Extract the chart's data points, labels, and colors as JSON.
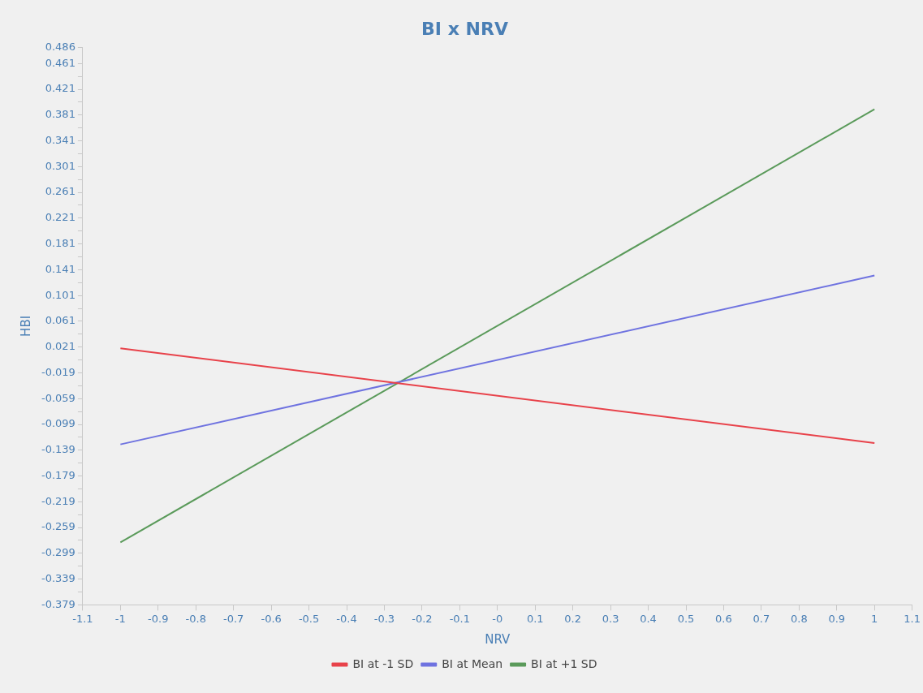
{
  "chart_data": {
    "type": "line",
    "title": "BI x NRV",
    "xlabel": "NRV",
    "ylabel": "HBI",
    "x": [
      -1,
      1
    ],
    "series": [
      {
        "name": "BI at -1 SD",
        "color": "#e8424a",
        "values": [
          0.019,
          -0.128
        ]
      },
      {
        "name": "BI at Mean",
        "color": "#6f73e0",
        "values": [
          -0.13,
          0.132
        ]
      },
      {
        "name": "BI at +1 SD",
        "color": "#5a9a5a",
        "values": [
          -0.282,
          0.39
        ]
      }
    ],
    "xlim": [
      -1.1,
      1.1
    ],
    "xticks": [
      -1.1,
      -1,
      -0.9,
      -0.8,
      -0.7,
      -0.6,
      -0.5,
      -0.4,
      -0.3,
      -0.2,
      -0.1,
      {
        "value": 0,
        "label": "-0"
      },
      0.1,
      0.2,
      0.3,
      0.4,
      0.5,
      0.6,
      0.7,
      0.8,
      0.9,
      1,
      1.1
    ],
    "ylim": [
      -0.379,
      0.486
    ],
    "yticks": [
      -0.379,
      {
        "value": -0.359,
        "label": null
      },
      -0.339,
      {
        "value": -0.319,
        "label": null
      },
      -0.299,
      {
        "value": -0.279,
        "label": null
      },
      -0.259,
      {
        "value": -0.239,
        "label": null
      },
      -0.219,
      {
        "value": -0.199,
        "label": null
      },
      -0.179,
      {
        "value": -0.159,
        "label": null
      },
      -0.139,
      {
        "value": -0.119,
        "label": null
      },
      -0.099,
      {
        "value": -0.079,
        "label": null
      },
      -0.059,
      {
        "value": -0.039,
        "label": null
      },
      -0.019,
      {
        "value": 0.001,
        "label": null
      },
      0.021,
      {
        "value": 0.041,
        "label": null
      },
      0.061,
      {
        "value": 0.081,
        "label": null
      },
      0.101,
      {
        "value": 0.121,
        "label": null
      },
      0.141,
      {
        "value": 0.161,
        "label": null
      },
      0.181,
      {
        "value": 0.201,
        "label": null
      },
      0.221,
      {
        "value": 0.241,
        "label": null
      },
      0.261,
      {
        "value": 0.281,
        "label": null
      },
      0.301,
      {
        "value": 0.321,
        "label": null
      },
      0.341,
      {
        "value": 0.361,
        "label": null
      },
      0.381,
      {
        "value": 0.401,
        "label": null
      },
      0.421,
      {
        "value": 0.441,
        "label": null
      },
      0.461,
      0.486
    ],
    "grid": false,
    "legend": "bottom",
    "marker": "none",
    "line_style": "solid"
  }
}
